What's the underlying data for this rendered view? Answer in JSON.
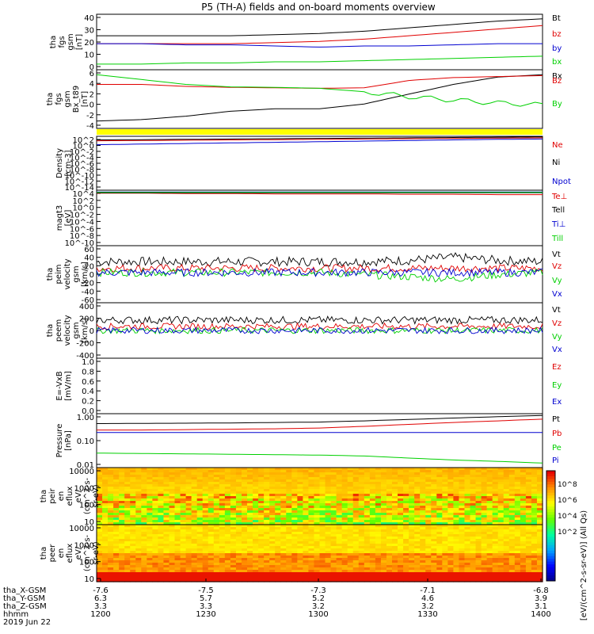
{
  "title": "P5 (TH-A) fields and on-board moments overview",
  "colors": {
    "black": "#000000",
    "red": "#e00000",
    "blue": "#0000d0",
    "green": "#00d000",
    "yellow": "#ffff00"
  },
  "chart_data": [
    {
      "type": "line",
      "ylabel_lines": [
        "tha",
        "fgs",
        "gsm",
        "[nT]"
      ],
      "ylim": [
        -7,
        42
      ],
      "yticks": [
        "40",
        "30",
        "20",
        "10",
        "0"
      ],
      "series": [
        {
          "name": "Bt",
          "color": "black",
          "values": [
            23,
            23,
            23,
            23,
            24,
            25,
            27,
            30,
            33,
            36,
            38
          ]
        },
        {
          "name": "bz",
          "color": "red",
          "values": [
            16,
            16,
            16,
            16,
            17,
            18,
            20,
            23,
            26,
            29,
            32
          ]
        },
        {
          "name": "by",
          "color": "blue",
          "values": [
            16,
            16,
            15,
            15,
            14,
            13,
            14,
            14,
            15,
            16,
            16
          ]
        },
        {
          "name": "bx",
          "color": "green",
          "values": [
            -2,
            -2,
            -1,
            -1,
            0,
            0,
            1,
            2,
            3,
            4,
            5
          ]
        }
      ]
    },
    {
      "type": "line",
      "ylabel_lines": [
        "tha",
        "fgs",
        "gsm",
        "Bx_t89",
        "[nT]"
      ],
      "ylim": [
        -5,
        7
      ],
      "yticks": [
        "6",
        "4",
        "2",
        "0",
        "-2",
        "-4"
      ],
      "series": [
        {
          "name": "Bx",
          "color": "black",
          "values": [
            -3.5,
            -3.2,
            -2.5,
            -1.5,
            -1,
            -1,
            0,
            2,
            4,
            5.5,
            6
          ]
        },
        {
          "name": "Bz",
          "color": "red",
          "values": [
            4,
            4,
            3.6,
            3.4,
            3.3,
            3.2,
            3.3,
            4.8,
            5.4,
            5.6,
            5.8
          ]
        },
        {
          "name": "By",
          "color": "green",
          "values": [
            6,
            5,
            4,
            3.5,
            3.4,
            3.2,
            2.5,
            1.5,
            0.8,
            0.2,
            -0.2
          ]
        }
      ]
    },
    {
      "type": "line",
      "ylabel_lines": [
        "Density",
        "[cm-3]"
      ],
      "yscale": "log",
      "ylim": [
        -15,
        3
      ],
      "yticks": [
        "10^2",
        "10^0",
        "10^-2",
        "10^-4",
        "10^-6",
        "10^-8",
        "10^-10",
        "10^-12",
        "10^-14"
      ],
      "series": [
        {
          "name": "Ne",
          "color": "red",
          "values": [
            1.5,
            1.6,
            1.7,
            1.8,
            1.9,
            2.0,
            2.1,
            2.2,
            2.3,
            2.4,
            2.5
          ]
        },
        {
          "name": "Ni",
          "color": "black",
          "values": [
            1.8,
            1.9,
            2.0,
            2.1,
            2.2,
            2.3,
            2.4,
            2.5,
            2.6,
            2.7,
            2.8
          ]
        },
        {
          "name": "Npot",
          "color": "blue",
          "values": [
            0.2,
            0.4,
            0.6,
            0.8,
            1.0,
            1.2,
            1.4,
            1.6,
            1.8,
            2.0,
            2.1
          ]
        }
      ]
    },
    {
      "type": "line",
      "ylabel_lines": [
        "magt3",
        "[eV]"
      ],
      "yscale": "log",
      "ylim": [
        -11,
        4
      ],
      "yticks": [
        "10^4",
        "10^2",
        "10^0",
        "10^-2",
        "10^-4",
        "10^-6",
        "10^-8",
        "10^-10"
      ],
      "series": [
        {
          "name": "Te⊥",
          "color": "red",
          "values": [
            3.2,
            3.2,
            3.1,
            3.1,
            3.0,
            3.0,
            3.0,
            2.9,
            2.9,
            2.8,
            2.8
          ]
        },
        {
          "name": "Tell",
          "color": "black",
          "values": [
            3.3,
            3.3,
            3.3,
            3.3,
            3.3,
            3.3,
            3.3,
            3.3,
            3.3,
            3.3,
            3.3
          ]
        },
        {
          "name": "Ti⊥",
          "color": "blue",
          "values": [
            3.5,
            3.5,
            3.5,
            3.5,
            3.5,
            3.5,
            3.5,
            3.5,
            3.5,
            3.5,
            3.5
          ]
        },
        {
          "name": "Till",
          "color": "green",
          "values": [
            3.4,
            3.4,
            3.4,
            3.4,
            3.4,
            3.4,
            3.4,
            3.4,
            3.4,
            3.4,
            3.4
          ]
        }
      ]
    },
    {
      "type": "line",
      "ylabel_lines": [
        "tha",
        "peim",
        "velocity",
        "gsm",
        "[km/s]"
      ],
      "ylim": [
        -70,
        62
      ],
      "yticks": [
        "60",
        "40",
        "20",
        "0",
        "-20",
        "-40",
        "-60"
      ],
      "series": [
        {
          "name": "Vt",
          "color": "black",
          "values": [
            25,
            25,
            25,
            25,
            25,
            25,
            25,
            28,
            35,
            28,
            25
          ]
        },
        {
          "name": "Vz",
          "color": "red",
          "values": [
            10,
            10,
            10,
            10,
            10,
            10,
            10,
            10,
            10,
            10,
            10
          ]
        },
        {
          "name": "Vy",
          "color": "green",
          "values": [
            0,
            0,
            0,
            0,
            0,
            0,
            -5,
            -10,
            -15,
            -5,
            0
          ]
        },
        {
          "name": "Vx",
          "color": "blue",
          "values": [
            0,
            0,
            0,
            0,
            0,
            0,
            0,
            0,
            0,
            0,
            0
          ]
        }
      ]
    },
    {
      "type": "line",
      "ylabel_lines": [
        "tha",
        "peem",
        "velocity",
        "gsm",
        "[km/s]"
      ],
      "ylim": [
        -400,
        400
      ],
      "yticks": [
        "400",
        "200",
        "0",
        "-200",
        "-400"
      ],
      "series": [
        {
          "name": "Vt",
          "color": "black",
          "values": [
            150,
            150,
            150,
            150,
            150,
            150,
            150,
            150,
            150,
            150,
            150
          ]
        },
        {
          "name": "Vz",
          "color": "red",
          "values": [
            60,
            60,
            60,
            60,
            60,
            60,
            60,
            60,
            60,
            60,
            60
          ]
        },
        {
          "name": "Vy",
          "color": "green",
          "values": [
            0,
            0,
            0,
            0,
            0,
            0,
            0,
            0,
            0,
            0,
            0
          ]
        },
        {
          "name": "Vx",
          "color": "blue",
          "values": [
            0,
            0,
            0,
            0,
            0,
            0,
            0,
            0,
            0,
            0,
            0
          ]
        }
      ]
    },
    {
      "type": "line",
      "ylabel_lines": [
        "E=-VxB",
        "[mV/m]"
      ],
      "ylim": [
        0,
        1
      ],
      "yticks": [
        "1.0",
        "0.8",
        "0.6",
        "0.4",
        "0.2",
        "0.0"
      ],
      "series": [
        {
          "name": "Ez",
          "color": "red",
          "values": []
        },
        {
          "name": "Ey",
          "color": "green",
          "values": []
        },
        {
          "name": "Ex",
          "color": "blue",
          "values": []
        }
      ]
    },
    {
      "type": "line",
      "ylabel_lines": [
        "Pressure",
        "[nPa]"
      ],
      "yscale": "log",
      "ylim": [
        -2.1,
        0.05
      ],
      "yticks": [
        "1.00",
        "0.10",
        "0.01"
      ],
      "series": [
        {
          "name": "Pt",
          "color": "black",
          "values": [
            0.45,
            0.46,
            0.47,
            0.48,
            0.5,
            0.52,
            0.58,
            0.66,
            0.75,
            0.85,
            0.95
          ]
        },
        {
          "name": "Pb",
          "color": "red",
          "values": [
            0.25,
            0.25,
            0.26,
            0.27,
            0.28,
            0.3,
            0.35,
            0.42,
            0.5,
            0.58,
            0.68
          ]
        },
        {
          "name": "Pe",
          "color": "green",
          "values": [
            0.03,
            0.029,
            0.028,
            0.027,
            0.026,
            0.025,
            0.023,
            0.019,
            0.016,
            0.014,
            0.012
          ]
        },
        {
          "name": "Pi",
          "color": "blue",
          "values": [
            0.2,
            0.2,
            0.2,
            0.2,
            0.2,
            0.2,
            0.2,
            0.2,
            0.2,
            0.2,
            0.2
          ]
        }
      ]
    },
    {
      "type": "heatmap",
      "ylabel_lines": [
        "tha",
        "peir",
        "en",
        "eflux",
        "eV/",
        "(cm^2-s-",
        "sr-eV)"
      ],
      "yscale": "log",
      "ylim": [
        5,
        30000
      ],
      "yticks": [
        "10000",
        "1000",
        "100",
        "10"
      ],
      "colorbar_label": "[eV/(cm^2-s-sr-eV)] (All Qs)",
      "colorbar_ticks": [
        "10^8",
        "10^6",
        "10^4",
        "10^2"
      ]
    },
    {
      "type": "heatmap",
      "ylabel_lines": [
        "tha",
        "peer",
        "en",
        "eflux",
        "eV/",
        "(cm^2-s-",
        "sr-eV)"
      ],
      "yscale": "log",
      "ylim": [
        5,
        30000
      ],
      "yticks": [
        "10000",
        "1000",
        "100",
        "10"
      ],
      "colorbar_label": "[eV/(cm^2-s-sr-eV)] (All Qs)",
      "colorbar_ticks": [
        "10^8",
        "10^6",
        "10^4",
        "10^2"
      ]
    }
  ],
  "x_axis": {
    "rows": [
      {
        "label": "tha_X-GSM",
        "values": [
          "-7.6",
          "-7.5",
          "-7.3",
          "-7.1",
          "-6.8"
        ]
      },
      {
        "label": "tha_Y-GSM",
        "values": [
          "6.3",
          "5.7",
          "5.2",
          "4.6",
          "3.9"
        ]
      },
      {
        "label": "tha_Z-GSM",
        "values": [
          "3.3",
          "3.3",
          "3.2",
          "3.2",
          "3.1"
        ]
      },
      {
        "label": "hhmm",
        "values": [
          "1200",
          "1230",
          "1300",
          "1330",
          "1400"
        ]
      }
    ],
    "date": "2019 Jun 22"
  }
}
